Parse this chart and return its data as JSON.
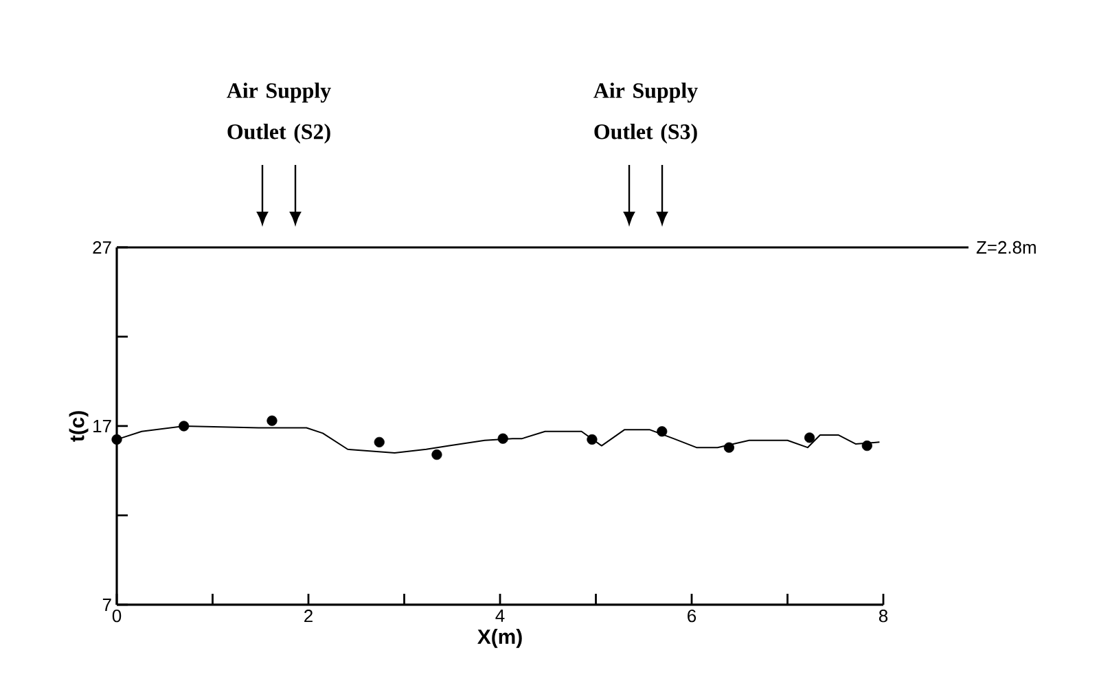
{
  "chart_data": {
    "type": "line",
    "xlabel": "X(m)",
    "ylabel": "t(c)",
    "xlim": [
      0,
      8
    ],
    "ylim": [
      7,
      27
    ],
    "xticks": [
      0,
      {
        "value": 1,
        "label": null
      },
      2,
      {
        "value": 3,
        "label": null
      },
      4,
      {
        "value": 5,
        "label": null
      },
      6,
      {
        "value": 7,
        "label": null
      },
      8
    ],
    "yticks": [
      7,
      {
        "value": 12,
        "label": null
      },
      17,
      {
        "value": 22,
        "label": null
      },
      27
    ],
    "line_style": "solid",
    "series": [
      {
        "type": "line",
        "color": "#000000",
        "marker": "none",
        "x": [
          0.03,
          0.26,
          0.7,
          1.48,
          1.98,
          2.15,
          2.41,
          2.9,
          3.23,
          3.47,
          3.84,
          4.13,
          4.23,
          4.47,
          4.85,
          5.06,
          5.3,
          5.56,
          5.81,
          6.05,
          6.27,
          6.6,
          7.0,
          7.21,
          7.34,
          7.53,
          7.71,
          7.96
        ],
        "values": [
          16.3,
          16.7,
          17.0,
          16.9,
          16.9,
          16.6,
          15.7,
          15.5,
          15.7,
          15.9,
          16.2,
          16.3,
          16.3,
          16.7,
          16.7,
          15.9,
          16.8,
          16.8,
          16.3,
          15.8,
          15.8,
          16.2,
          16.2,
          15.8,
          16.5,
          16.5,
          16.0,
          16.1
        ]
      },
      {
        "type": "scatter",
        "color": "#000000",
        "marker": "circle",
        "x": [
          0,
          0.7,
          1.62,
          2.74,
          3.34,
          4.03,
          4.96,
          5.69,
          6.39,
          7.23,
          7.83
        ],
        "values": [
          16.25,
          17.0,
          17.3,
          16.1,
          15.4,
          16.3,
          16.25,
          16.7,
          15.8,
          16.35,
          15.9
        ]
      }
    ],
    "ref_lines": [
      {
        "axis": "y",
        "value": 27
      }
    ],
    "annotations": [
      "Z=2.8m",
      "Air Supply Outlet (S2)",
      "Air Supply Outlet (S3)"
    ]
  }
}
